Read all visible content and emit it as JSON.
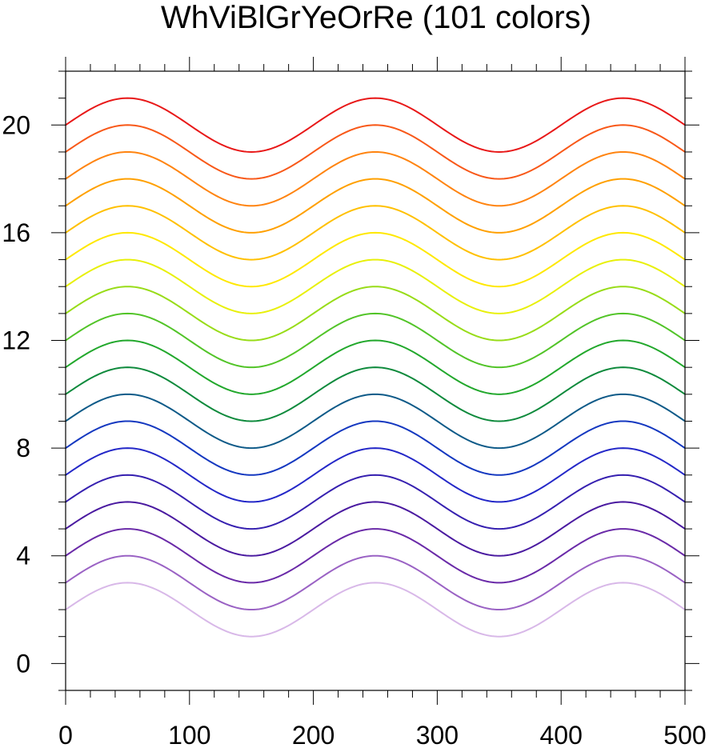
{
  "chart_data": {
    "type": "line",
    "title": "WhViBlGrYeOrRe (101 colors)",
    "xlabel": "",
    "ylabel": "",
    "xlim": [
      0,
      500
    ],
    "ylim": [
      -1,
      22
    ],
    "xticks": [
      0,
      100,
      200,
      300,
      400,
      500
    ],
    "yticks": [
      0,
      4,
      8,
      12,
      16,
      20
    ],
    "grid": false,
    "legend": "none",
    "x": [
      0,
      50,
      100,
      150,
      200,
      250,
      300,
      350,
      400,
      450,
      500
    ],
    "series": [
      {
        "color": "#d8b8e8",
        "values": [
          2,
          3,
          2,
          1,
          2,
          3,
          2,
          1,
          2,
          3,
          2
        ]
      },
      {
        "color": "#9a62c4",
        "values": [
          3,
          4,
          3,
          2,
          3,
          4,
          3,
          2,
          3,
          4,
          3
        ]
      },
      {
        "color": "#6a2aa8",
        "values": [
          4,
          5,
          4,
          3,
          4,
          5,
          4,
          3,
          4,
          5,
          4
        ]
      },
      {
        "color": "#4a1aa0",
        "values": [
          5,
          6,
          5,
          4,
          5,
          6,
          5,
          4,
          5,
          6,
          5
        ]
      },
      {
        "color": "#3620b0",
        "values": [
          6,
          7,
          6,
          5,
          6,
          7,
          6,
          5,
          6,
          7,
          6
        ]
      },
      {
        "color": "#2428c8",
        "values": [
          7,
          8,
          7,
          6,
          7,
          8,
          7,
          6,
          7,
          8,
          7
        ]
      },
      {
        "color": "#1438c0",
        "values": [
          8,
          9,
          8,
          7,
          8,
          9,
          8,
          7,
          8,
          9,
          8
        ]
      },
      {
        "color": "#0e5a88",
        "values": [
          9,
          10,
          9,
          8,
          9,
          10,
          9,
          8,
          9,
          10,
          9
        ]
      },
      {
        "color": "#0e8a3c",
        "values": [
          10,
          11,
          10,
          9,
          10,
          11,
          10,
          9,
          10,
          11,
          10
        ]
      },
      {
        "color": "#22a82c",
        "values": [
          11,
          12,
          11,
          10,
          11,
          12,
          11,
          10,
          11,
          12,
          11
        ]
      },
      {
        "color": "#52c428",
        "values": [
          12,
          13,
          12,
          11,
          12,
          13,
          12,
          11,
          12,
          13,
          12
        ]
      },
      {
        "color": "#98dc18",
        "values": [
          13,
          14,
          13,
          12,
          13,
          14,
          13,
          12,
          13,
          14,
          13
        ]
      },
      {
        "color": "#e8f00a",
        "values": [
          14,
          15,
          14,
          13,
          14,
          15,
          14,
          13,
          14,
          15,
          14
        ]
      },
      {
        "color": "#ffe800",
        "values": [
          15,
          16,
          15,
          14,
          15,
          16,
          15,
          14,
          15,
          16,
          15
        ]
      },
      {
        "color": "#ffc000",
        "values": [
          16,
          17,
          16,
          15,
          16,
          17,
          16,
          15,
          16,
          17,
          16
        ]
      },
      {
        "color": "#ffa000",
        "values": [
          17,
          18,
          17,
          16,
          17,
          18,
          17,
          16,
          17,
          18,
          17
        ]
      },
      {
        "color": "#ff8410",
        "values": [
          18,
          19,
          18,
          17,
          18,
          19,
          18,
          17,
          18,
          19,
          18
        ]
      },
      {
        "color": "#f85818",
        "values": [
          19,
          20,
          19,
          18,
          19,
          20,
          19,
          18,
          19,
          20,
          19
        ]
      },
      {
        "color": "#e81818",
        "values": [
          20,
          21,
          20,
          19,
          20,
          21,
          20,
          19,
          20,
          21,
          20
        ]
      }
    ]
  }
}
